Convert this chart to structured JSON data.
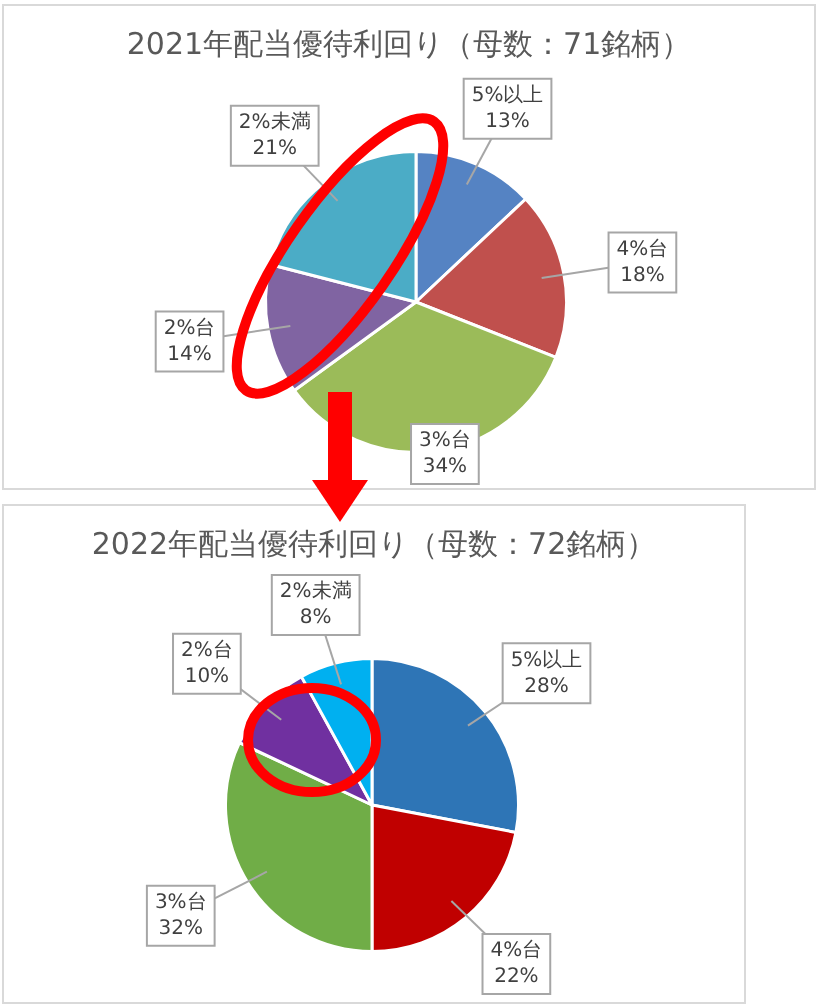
{
  "chart_data": [
    {
      "type": "pie",
      "title": "2021年配当優待利回り（母数：71銘柄）",
      "categories": [
        "5%以上",
        "4%台",
        "3%台",
        "2%台",
        "2%未満"
      ],
      "values": [
        13,
        18,
        34,
        14,
        21
      ],
      "colors": [
        "#5583c3",
        "#c0504d",
        "#9bbb59",
        "#8064a2",
        "#4bacc6"
      ],
      "value_labels": [
        "13%",
        "18%",
        "34%",
        "14%",
        "21%"
      ],
      "legend": false
    },
    {
      "type": "pie",
      "title": "2022年配当優待利回り（母数：72銘柄）",
      "categories": [
        "5%以上",
        "4%台",
        "3%台",
        "2%台",
        "2%未満"
      ],
      "values": [
        28,
        22,
        32,
        10,
        8
      ],
      "colors": [
        "#2e75b6",
        "#c00000",
        "#70ad47",
        "#7030a0",
        "#00b0f0"
      ],
      "value_labels": [
        "28%",
        "22%",
        "32%",
        "10%",
        "8%"
      ],
      "legend": false
    }
  ]
}
